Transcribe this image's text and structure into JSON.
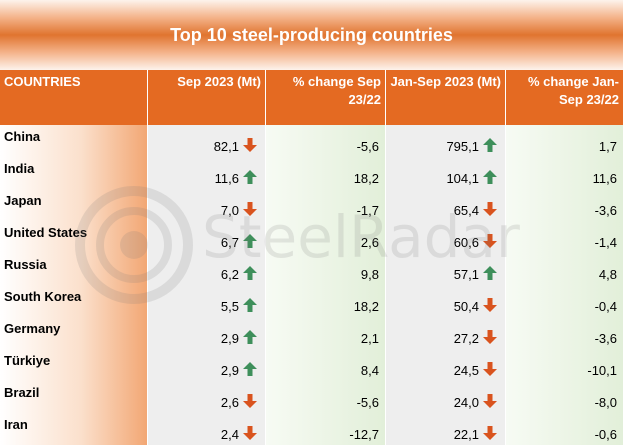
{
  "title": "Top 10 steel-producing countries",
  "watermark_text": "SteelRadar",
  "colors": {
    "header": "#e46a22",
    "up": "#3e8f5b",
    "down": "#d9531e"
  },
  "headers": {
    "country": "COUNTRIES",
    "sep": "Sep 2023 (Mt)",
    "sep_change": "% change Sep 23/22",
    "ytd": "Jan-Sep 2023 (Mt)",
    "ytd_change": "% change Jan-Sep 23/22"
  },
  "rows": [
    {
      "country": "China",
      "sep": "82,1",
      "sep_arrow": "down",
      "sep_change": "-5,6",
      "ytd": "795,1",
      "ytd_arrow": "up",
      "ytd_change": "1,7"
    },
    {
      "country": "India",
      "sep": "11,6",
      "sep_arrow": "up",
      "sep_change": "18,2",
      "ytd": "104,1",
      "ytd_arrow": "up",
      "ytd_change": "11,6"
    },
    {
      "country": "Japan",
      "sep": "7,0",
      "sep_arrow": "down",
      "sep_change": "-1,7",
      "ytd": "65,4",
      "ytd_arrow": "down",
      "ytd_change": "-3,6"
    },
    {
      "country": "United States",
      "sep": "6,7",
      "sep_arrow": "up",
      "sep_change": "2,6",
      "ytd": "60,6",
      "ytd_arrow": "down",
      "ytd_change": "-1,4"
    },
    {
      "country": "Russia",
      "sep": "6,2",
      "sep_arrow": "up",
      "sep_change": "9,8",
      "ytd": "57,1",
      "ytd_arrow": "up",
      "ytd_change": "4,8"
    },
    {
      "country": "South Korea",
      "sep": "5,5",
      "sep_arrow": "up",
      "sep_change": "18,2",
      "ytd": "50,4",
      "ytd_arrow": "down",
      "ytd_change": "-0,4"
    },
    {
      "country": "Germany",
      "sep": "2,9",
      "sep_arrow": "up",
      "sep_change": "2,1",
      "ytd": "27,2",
      "ytd_arrow": "down",
      "ytd_change": "-3,6"
    },
    {
      "country": "Türkiye",
      "sep": "2,9",
      "sep_arrow": "up",
      "sep_change": "8,4",
      "ytd": "24,5",
      "ytd_arrow": "down",
      "ytd_change": "-10,1"
    },
    {
      "country": "Brazil",
      "sep": "2,6",
      "sep_arrow": "down",
      "sep_change": "-5,6",
      "ytd": "24,0",
      "ytd_arrow": "down",
      "ytd_change": "-8,0"
    },
    {
      "country": "Iran",
      "sep": "2,4",
      "sep_arrow": "down",
      "sep_change": "-12,7",
      "ytd": "22,1",
      "ytd_arrow": "down",
      "ytd_change": "-0,6"
    }
  ]
}
